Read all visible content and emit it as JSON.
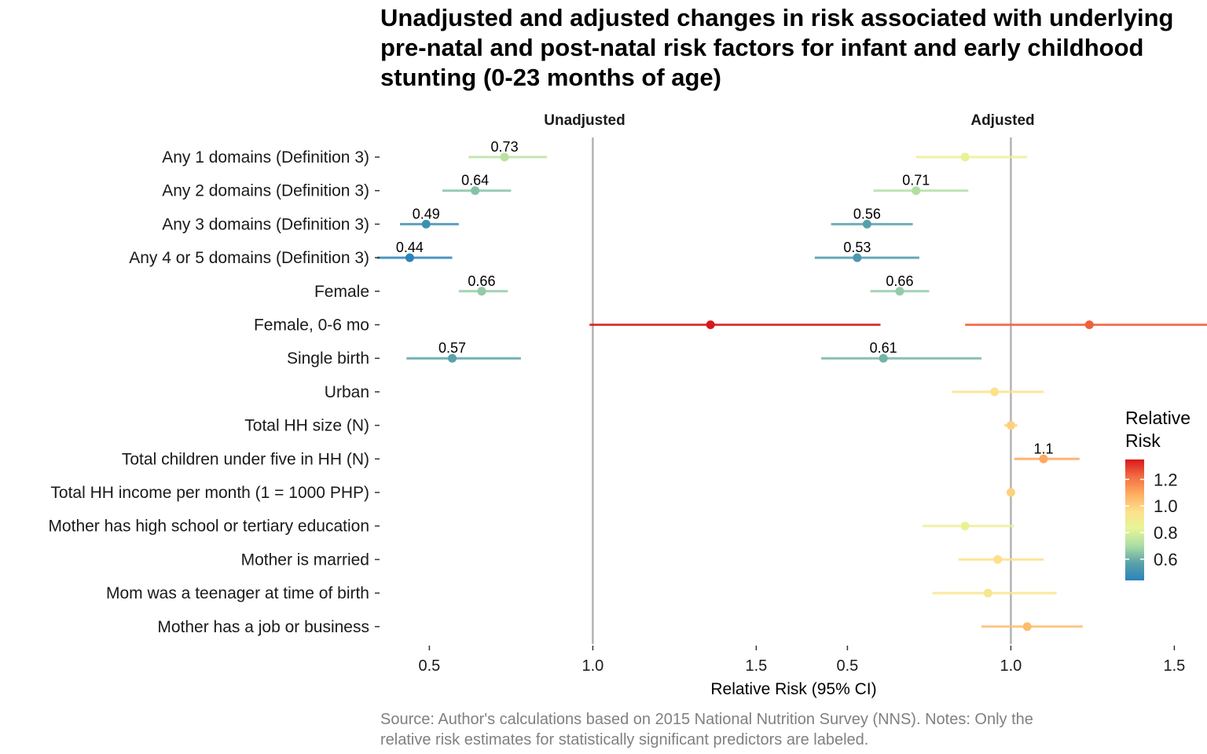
{
  "chart_data": {
    "type": "scatter",
    "subtype": "forest-plot",
    "title_lines": [
      "Unadjusted and adjusted changes in risk associated with underlying",
      "pre-natal and post-natal risk factors for infant and early childhood",
      "stunting (0-23 months of age)"
    ],
    "xlabel": "Relative Risk (95% CI)",
    "ylabel": "",
    "caption_lines": [
      "Source: Author's calculations based on 2015 National Nutrition Survey (NNS). Notes: Only the",
      "relative risk estimates for statistically significant predictors are labeled."
    ],
    "xlim": [
      0.35,
      1.6
    ],
    "x_ticks": [
      0.5,
      1.0,
      1.5
    ],
    "x_tick_labels": [
      "0.5",
      "1.0",
      "1.5"
    ],
    "reference_line": 1.0,
    "grid": false,
    "legend": {
      "title_lines": [
        "Relative",
        "Risk"
      ],
      "position": "right",
      "ticks": [
        1.2,
        1.0,
        0.8,
        0.6
      ],
      "tick_labels": [
        "1.2",
        "1.0",
        "0.8",
        "0.6"
      ],
      "range": [
        0.44,
        1.35
      ],
      "colormap": "Spectral (reversed)",
      "colors": [
        "#2b83ba",
        "#5aa2a9",
        "#abdda4",
        "#e6f598",
        "#fee08b",
        "#fdae61",
        "#f46d43",
        "#d7191c"
      ]
    },
    "categories": [
      "Any 1 domains (Definition 3)",
      "Any 2 domains (Definition 3)",
      "Any 3 domains (Definition 3)",
      "Any 4 or 5 domains (Definition 3)",
      "Female",
      "Female, 0-6 mo",
      "Single birth",
      "Urban",
      "Total HH size (N)",
      "Total children under five in HH (N)",
      "Total HH income per month (1 = 1000 PHP)",
      "Mother has high school or tertiary education",
      "Mother is married",
      "Mom was a teenager at time of birth",
      "Mother has a job or business"
    ],
    "panels": [
      {
        "name": "Unadjusted",
        "points": [
          {
            "row": 0,
            "estimate": 0.73,
            "low": 0.62,
            "high": 0.86,
            "label": "0.73"
          },
          {
            "row": 1,
            "estimate": 0.64,
            "low": 0.54,
            "high": 0.75,
            "label": "0.64"
          },
          {
            "row": 2,
            "estimate": 0.49,
            "low": 0.41,
            "high": 0.59,
            "label": "0.49"
          },
          {
            "row": 3,
            "estimate": 0.44,
            "low": 0.34,
            "high": 0.57,
            "label": "0.44"
          },
          {
            "row": 4,
            "estimate": 0.66,
            "low": 0.59,
            "high": 0.74,
            "label": "0.66"
          },
          {
            "row": 5,
            "estimate": 1.36,
            "low": 0.99,
            "high": 1.88,
            "label": ""
          },
          {
            "row": 6,
            "estimate": 0.57,
            "low": 0.43,
            "high": 0.78,
            "label": "0.57"
          }
        ]
      },
      {
        "name": "Adjusted",
        "points": [
          {
            "row": 0,
            "estimate": 0.86,
            "low": 0.71,
            "high": 1.05,
            "label": ""
          },
          {
            "row": 1,
            "estimate": 0.71,
            "low": 0.58,
            "high": 0.87,
            "label": "0.71"
          },
          {
            "row": 2,
            "estimate": 0.56,
            "low": 0.45,
            "high": 0.7,
            "label": "0.56"
          },
          {
            "row": 3,
            "estimate": 0.53,
            "low": 0.4,
            "high": 0.72,
            "label": "0.53"
          },
          {
            "row": 4,
            "estimate": 0.66,
            "low": 0.57,
            "high": 0.75,
            "label": "0.66"
          },
          {
            "row": 5,
            "estimate": 1.24,
            "low": 0.86,
            "high": 1.8,
            "label": ""
          },
          {
            "row": 6,
            "estimate": 0.61,
            "low": 0.42,
            "high": 0.91,
            "label": "0.61"
          },
          {
            "row": 7,
            "estimate": 0.95,
            "low": 0.82,
            "high": 1.1,
            "label": ""
          },
          {
            "row": 8,
            "estimate": 1.0,
            "low": 0.98,
            "high": 1.02,
            "label": ""
          },
          {
            "row": 9,
            "estimate": 1.1,
            "low": 1.01,
            "high": 1.21,
            "label": "1.1"
          },
          {
            "row": 10,
            "estimate": 1.0,
            "low": 0.99,
            "high": 1.01,
            "label": ""
          },
          {
            "row": 11,
            "estimate": 0.86,
            "low": 0.73,
            "high": 1.01,
            "label": ""
          },
          {
            "row": 12,
            "estimate": 0.96,
            "low": 0.84,
            "high": 1.1,
            "label": ""
          },
          {
            "row": 13,
            "estimate": 0.93,
            "low": 0.76,
            "high": 1.14,
            "label": ""
          },
          {
            "row": 14,
            "estimate": 1.05,
            "low": 0.91,
            "high": 1.22,
            "label": ""
          }
        ]
      }
    ]
  }
}
